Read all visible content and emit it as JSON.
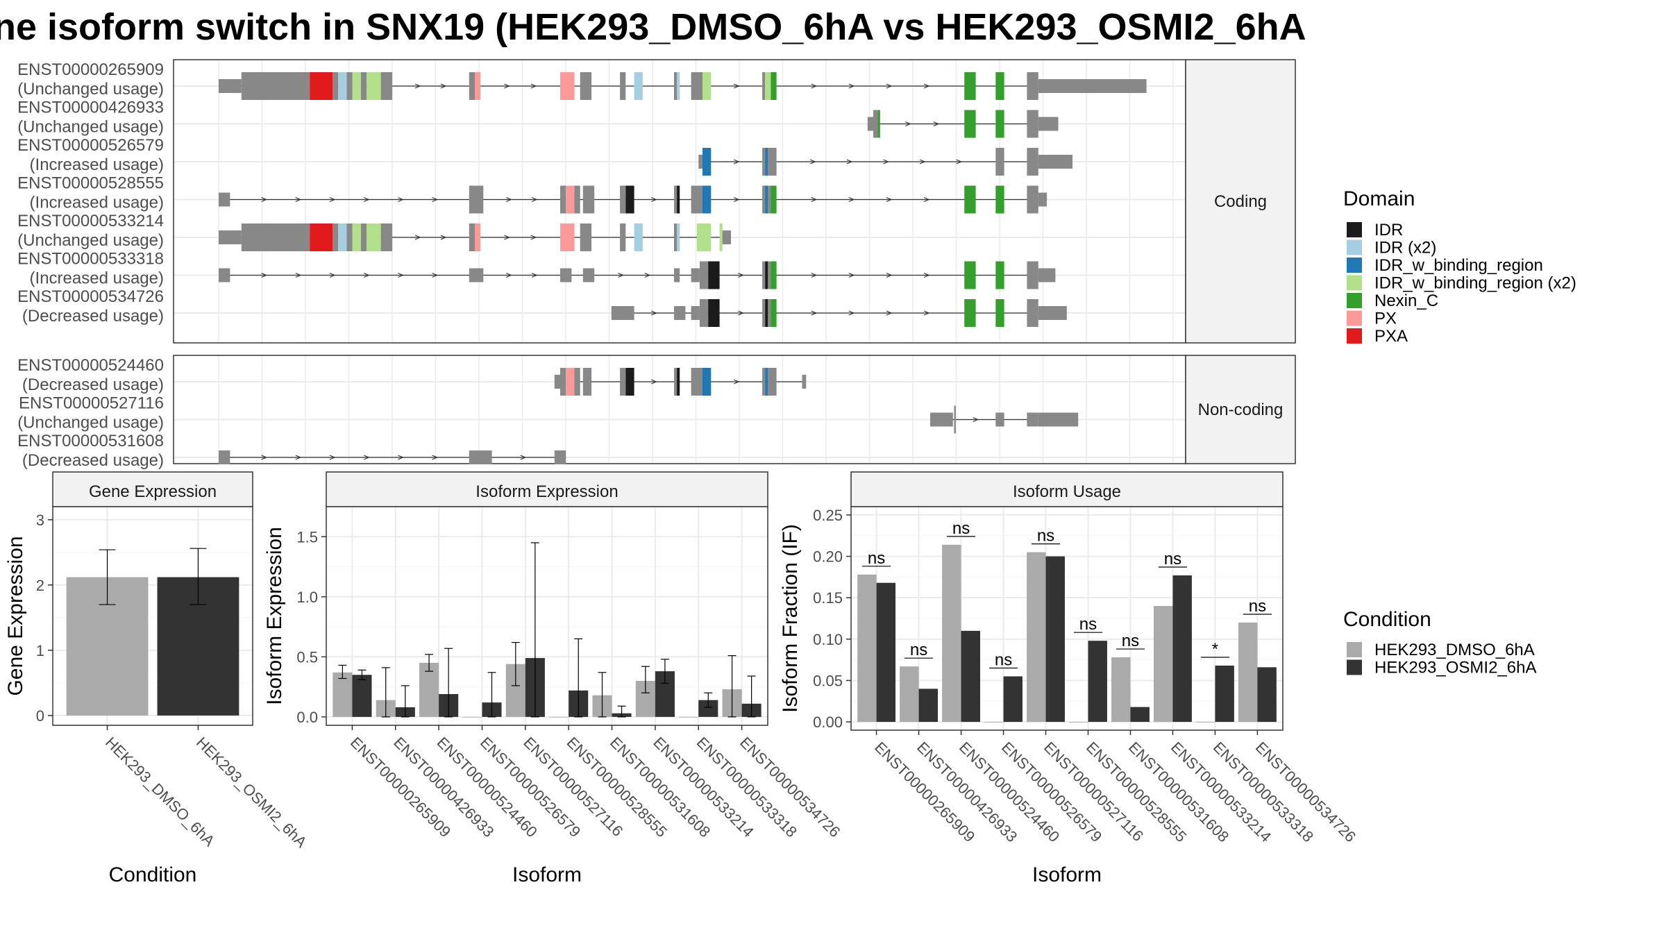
{
  "title": "ne isoform switch in SNX19 (HEK293_DMSO_6hA vs HEK293_OSMI2_6hA",
  "colors": {
    "grey": "#888888",
    "cond1": "#aaaaaa",
    "cond2": "#333333",
    "IDR": "#1b1b1b",
    "IDR (x2)": "#a6cee3",
    "IDR_w_binding_region": "#1f78b4",
    "IDR_w_binding_region (x2)": "#b2df8a",
    "Nexin_C": "#33a02c",
    "PX": "#fb9a99",
    "PXA": "#e31a1c"
  },
  "structure": {
    "coding_label": "Coding",
    "noncoding_label": "Non-coding",
    "coding": [
      {
        "id": "ENST00000265909",
        "usage": "(Unchanged usage)",
        "segs": [
          [
            0,
            40,
            "t"
          ],
          [
            40,
            160,
            "c"
          ],
          [
            160,
            200,
            "PXA"
          ],
          [
            200,
            210,
            "c"
          ],
          [
            210,
            225,
            "IDR (x2)"
          ],
          [
            225,
            235,
            "c"
          ],
          [
            235,
            250,
            "IDR_w_binding_region (x2)"
          ],
          [
            250,
            260,
            "c"
          ],
          [
            260,
            285,
            "IDR_w_binding_region (x2)"
          ],
          [
            285,
            305,
            "c"
          ],
          [
            440,
            450,
            "c"
          ],
          [
            450,
            460,
            "PX"
          ],
          [
            600,
            625,
            "PX"
          ],
          [
            635,
            655,
            "c"
          ],
          [
            705,
            715,
            "c"
          ],
          [
            730,
            745,
            "IDR (x2)"
          ],
          [
            800,
            805,
            "c"
          ],
          [
            805,
            810,
            "IDR (x2)"
          ],
          [
            830,
            850,
            "c"
          ],
          [
            850,
            865,
            "IDR_w_binding_region (x2)"
          ],
          [
            955,
            960,
            "c"
          ],
          [
            960,
            970,
            "IDR_w_binding_region (x2)"
          ],
          [
            970,
            980,
            "Nexin_C"
          ],
          [
            1310,
            1330,
            "Nexin_C"
          ],
          [
            1365,
            1380,
            "Nexin_C"
          ],
          [
            1420,
            1440,
            "c"
          ],
          [
            1440,
            1630,
            "t"
          ]
        ]
      },
      {
        "id": "ENST00000426933",
        "usage": "(Unchanged usage)",
        "segs": [
          [
            1140,
            1150,
            "t"
          ],
          [
            1150,
            1158,
            "c"
          ],
          [
            1158,
            1162,
            "Nexin_C"
          ],
          [
            1310,
            1330,
            "Nexin_C"
          ],
          [
            1365,
            1380,
            "Nexin_C"
          ],
          [
            1420,
            1440,
            "c"
          ],
          [
            1440,
            1475,
            "t"
          ]
        ]
      },
      {
        "id": "ENST00000526579",
        "usage": "(Increased usage)",
        "segs": [
          [
            843,
            850,
            "t"
          ],
          [
            850,
            865,
            "IDR_w_binding_region"
          ],
          [
            955,
            960,
            "c"
          ],
          [
            960,
            965,
            "IDR_w_binding_region"
          ],
          [
            965,
            980,
            "c"
          ],
          [
            1365,
            1380,
            "c"
          ],
          [
            1420,
            1440,
            "c"
          ],
          [
            1440,
            1500,
            "t"
          ]
        ]
      },
      {
        "id": "ENST00000528555",
        "usage": "(Increased usage)",
        "segs": [
          [
            0,
            20,
            "t"
          ],
          [
            440,
            465,
            "c"
          ],
          [
            600,
            610,
            "c"
          ],
          [
            610,
            625,
            "PX"
          ],
          [
            625,
            635,
            "c"
          ],
          [
            640,
            660,
            "c"
          ],
          [
            705,
            715,
            "c"
          ],
          [
            715,
            730,
            "IDR"
          ],
          [
            800,
            805,
            "c"
          ],
          [
            805,
            810,
            "IDR"
          ],
          [
            830,
            850,
            "c"
          ],
          [
            850,
            865,
            "IDR_w_binding_region"
          ],
          [
            955,
            960,
            "c"
          ],
          [
            960,
            965,
            "IDR_w_binding_region"
          ],
          [
            965,
            970,
            "c"
          ],
          [
            970,
            980,
            "Nexin_C"
          ],
          [
            1310,
            1330,
            "Nexin_C"
          ],
          [
            1365,
            1380,
            "Nexin_C"
          ],
          [
            1420,
            1440,
            "c"
          ],
          [
            1440,
            1455,
            "t"
          ]
        ]
      },
      {
        "id": "ENST00000533214",
        "usage": "(Unchanged usage)",
        "segs": [
          [
            0,
            40,
            "t"
          ],
          [
            40,
            160,
            "c"
          ],
          [
            160,
            200,
            "PXA"
          ],
          [
            200,
            210,
            "c"
          ],
          [
            210,
            225,
            "IDR (x2)"
          ],
          [
            225,
            235,
            "c"
          ],
          [
            235,
            250,
            "IDR_w_binding_region (x2)"
          ],
          [
            250,
            260,
            "c"
          ],
          [
            260,
            285,
            "IDR_w_binding_region (x2)"
          ],
          [
            285,
            305,
            "c"
          ],
          [
            440,
            450,
            "c"
          ],
          [
            450,
            460,
            "PX"
          ],
          [
            600,
            625,
            "PX"
          ],
          [
            635,
            655,
            "c"
          ],
          [
            705,
            715,
            "c"
          ],
          [
            730,
            745,
            "IDR (x2)"
          ],
          [
            800,
            805,
            "c"
          ],
          [
            805,
            810,
            "IDR (x2)"
          ],
          [
            840,
            865,
            "IDR_w_binding_region (x2)"
          ],
          [
            880,
            885,
            "IDR_w_binding_region (x2)"
          ],
          [
            885,
            900,
            "t"
          ]
        ]
      },
      {
        "id": "ENST00000533318",
        "usage": "(Increased usage)",
        "segs": [
          [
            0,
            20,
            "t"
          ],
          [
            440,
            465,
            "t"
          ],
          [
            600,
            620,
            "t"
          ],
          [
            640,
            660,
            "t"
          ],
          [
            800,
            810,
            "t"
          ],
          [
            830,
            845,
            "t"
          ],
          [
            845,
            860,
            "c"
          ],
          [
            860,
            880,
            "IDR"
          ],
          [
            955,
            960,
            "c"
          ],
          [
            960,
            965,
            "IDR"
          ],
          [
            965,
            970,
            "c"
          ],
          [
            970,
            980,
            "Nexin_C"
          ],
          [
            1310,
            1330,
            "Nexin_C"
          ],
          [
            1365,
            1380,
            "Nexin_C"
          ],
          [
            1420,
            1440,
            "c"
          ],
          [
            1440,
            1470,
            "t"
          ]
        ]
      },
      {
        "id": "ENST00000534726",
        "usage": "(Decreased usage)",
        "segs": [
          [
            690,
            730,
            "t"
          ],
          [
            800,
            820,
            "t"
          ],
          [
            830,
            845,
            "t"
          ],
          [
            845,
            860,
            "c"
          ],
          [
            860,
            880,
            "IDR"
          ],
          [
            955,
            960,
            "c"
          ],
          [
            960,
            965,
            "IDR"
          ],
          [
            965,
            970,
            "c"
          ],
          [
            970,
            980,
            "Nexin_C"
          ],
          [
            1310,
            1330,
            "Nexin_C"
          ],
          [
            1365,
            1380,
            "Nexin_C"
          ],
          [
            1420,
            1440,
            "c"
          ],
          [
            1440,
            1490,
            "t"
          ]
        ]
      }
    ],
    "noncoding": [
      {
        "id": "ENST00000524460",
        "usage": "(Decreased usage)",
        "segs": [
          [
            590,
            600,
            "t"
          ],
          [
            600,
            610,
            "c"
          ],
          [
            610,
            625,
            "PX"
          ],
          [
            625,
            635,
            "c"
          ],
          [
            640,
            655,
            "c"
          ],
          [
            705,
            715,
            "c"
          ],
          [
            715,
            730,
            "IDR"
          ],
          [
            800,
            805,
            "c"
          ],
          [
            805,
            810,
            "IDR"
          ],
          [
            830,
            850,
            "c"
          ],
          [
            850,
            865,
            "IDR_w_binding_region"
          ],
          [
            955,
            960,
            "c"
          ],
          [
            960,
            965,
            "IDR_w_binding_region"
          ],
          [
            965,
            980,
            "c"
          ],
          [
            1025,
            1032,
            "t"
          ]
        ]
      },
      {
        "id": "ENST00000527116",
        "usage": "(Unchanged usage)",
        "segs": [
          [
            1250,
            1290,
            "t"
          ],
          [
            1292,
            1295,
            "c"
          ],
          [
            1365,
            1380,
            "t"
          ],
          [
            1420,
            1440,
            "t"
          ],
          [
            1440,
            1510,
            "t"
          ]
        ]
      },
      {
        "id": "ENST00000531608",
        "usage": "(Decreased usage)",
        "segs": [
          [
            0,
            20,
            "t"
          ],
          [
            440,
            480,
            "t"
          ],
          [
            590,
            610,
            "t"
          ]
        ]
      }
    ]
  },
  "legend_domain": {
    "title": "Domain",
    "items": [
      "IDR",
      "IDR (x2)",
      "IDR_w_binding_region",
      "IDR_w_binding_region (x2)",
      "Nexin_C",
      "PX",
      "PXA"
    ]
  },
  "legend_condition": {
    "title": "Condition",
    "items": [
      "HEK293_DMSO_6hA",
      "HEK293_OSMI2_6hA"
    ]
  },
  "chart_data": [
    {
      "type": "bar",
      "title": "Gene Expression",
      "xlabel": "Condition",
      "ylabel": "Gene Expression",
      "categories": [
        "HEK293_DMSO_6hA",
        "HEK293_OSMI2_6hA"
      ],
      "values": [
        2.12,
        2.12
      ],
      "errors": [
        [
          1.7,
          2.54
        ],
        [
          1.7,
          2.56
        ]
      ],
      "ylim": [
        -0.15,
        3.2
      ],
      "yticks": [
        0,
        1,
        2,
        3
      ]
    },
    {
      "type": "bar",
      "title": "Isoform Expression",
      "xlabel": "Isoform",
      "ylabel": "Isoform Expression",
      "categories": [
        "ENST00000265909",
        "ENST00000426933",
        "ENST00000524460",
        "ENST00000526579",
        "ENST00000527116",
        "ENST00000528555",
        "ENST00000531608",
        "ENST00000533214",
        "ENST00000533318",
        "ENST00000534726"
      ],
      "series": [
        {
          "name": "HEK293_DMSO_6hA",
          "values": [
            0.37,
            0.14,
            0.45,
            0.0,
            0.44,
            0.0,
            0.18,
            0.3,
            0.0,
            0.23
          ],
          "errors": [
            [
              0.32,
              0.43
            ],
            [
              0.0,
              0.41
            ],
            [
              0.38,
              0.52
            ],
            null,
            [
              0.26,
              0.62
            ],
            null,
            [
              0.0,
              0.37
            ],
            [
              0.2,
              0.42
            ],
            null,
            [
              0.0,
              0.51
            ]
          ]
        },
        {
          "name": "HEK293_OSMI2_6hA",
          "values": [
            0.35,
            0.08,
            0.19,
            0.12,
            0.49,
            0.22,
            0.03,
            0.38,
            0.14,
            0.11
          ],
          "errors": [
            [
              0.31,
              0.39
            ],
            [
              0.0,
              0.26
            ],
            [
              0.0,
              0.57
            ],
            [
              0.0,
              0.37
            ],
            [
              0.0,
              1.45
            ],
            [
              0.0,
              0.65
            ],
            [
              0.0,
              0.09
            ],
            [
              0.28,
              0.48
            ],
            [
              0.08,
              0.2
            ],
            [
              0.0,
              0.34
            ]
          ]
        }
      ],
      "ylim": [
        -0.07,
        1.75
      ],
      "yticks": [
        0.0,
        0.5,
        1.0,
        1.5
      ]
    },
    {
      "type": "bar",
      "title": "Isoform Usage",
      "xlabel": "Isoform",
      "ylabel": "Isoform Fraction (IF)",
      "categories": [
        "ENST00000265909",
        "ENST00000426933",
        "ENST00000524460",
        "ENST00000526579",
        "ENST00000527116",
        "ENST00000528555",
        "ENST00000531608",
        "ENST00000533214",
        "ENST00000533318",
        "ENST00000534726"
      ],
      "series": [
        {
          "name": "HEK293_DMSO_6hA",
          "values": [
            0.178,
            0.067,
            0.214,
            0.0,
            0.205,
            0.0,
            0.078,
            0.14,
            0.0,
            0.12
          ]
        },
        {
          "name": "HEK293_OSMI2_6hA",
          "values": [
            0.168,
            0.04,
            0.11,
            0.055,
            0.2,
            0.098,
            0.018,
            0.177,
            0.068,
            0.066
          ]
        }
      ],
      "significance": [
        "ns",
        "ns",
        "ns",
        "ns",
        "ns",
        "ns",
        "ns",
        "ns",
        "*",
        "ns"
      ],
      "ylim": [
        -0.01,
        0.26
      ],
      "yticks": [
        0.0,
        0.05,
        0.1,
        0.15,
        0.2,
        0.25
      ],
      "ytick_labels": [
        "0.00",
        "0.05",
        "0.10",
        "0.15",
        "0.20",
        "0.25"
      ]
    }
  ]
}
